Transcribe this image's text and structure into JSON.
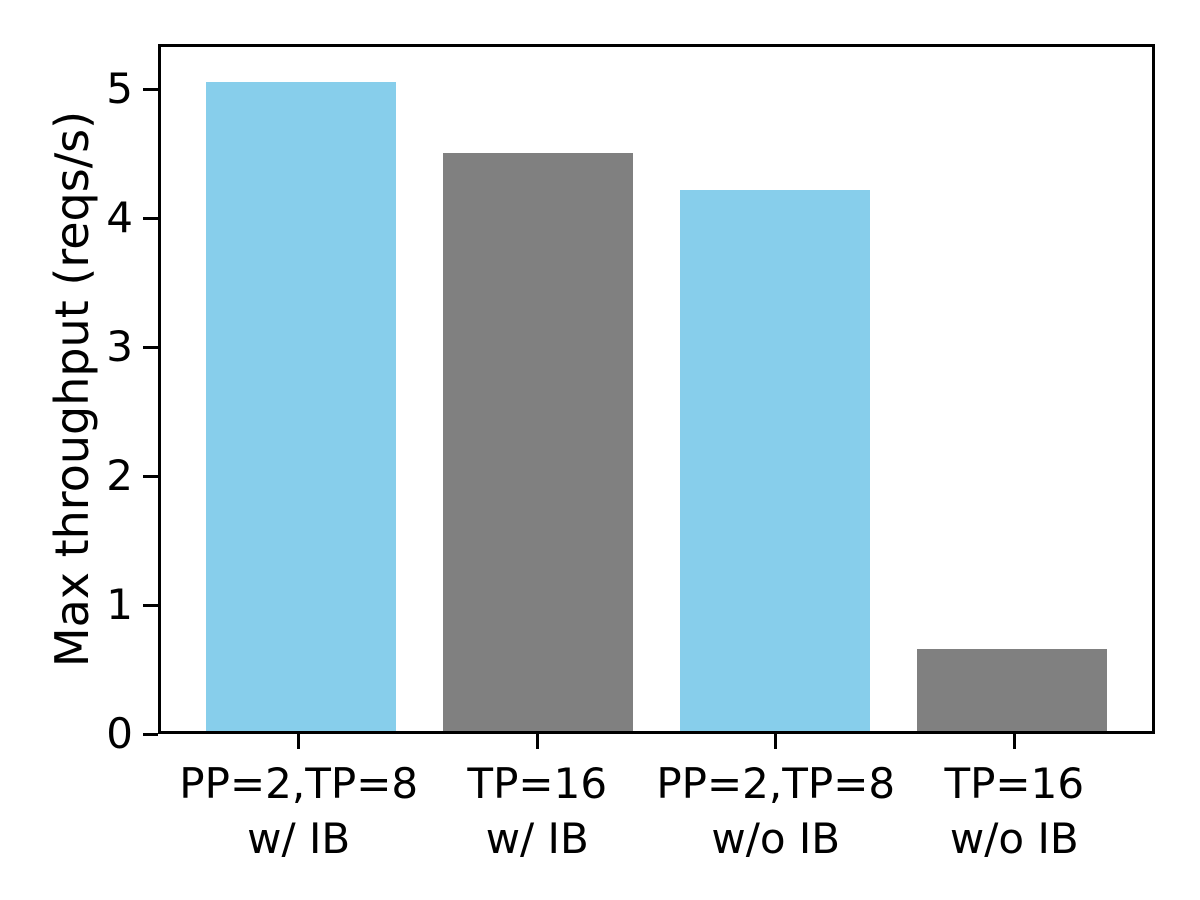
{
  "chart_data": {
    "type": "bar",
    "title": "",
    "xlabel": "",
    "ylabel": "Max throughput (reqs/s)",
    "categories": [
      [
        "PP=2,TP=8",
        "w/ IB"
      ],
      [
        "TP=16",
        "w/ IB"
      ],
      [
        "PP=2,TP=8",
        "w/o IB"
      ],
      [
        "TP=16",
        "w/o IB"
      ]
    ],
    "values": [
      5.08,
      4.52,
      4.23,
      0.64
    ],
    "bar_colors": [
      "#87CEEB",
      "#808080",
      "#87CEEB",
      "#808080"
    ],
    "yticks": [
      0,
      1,
      2,
      3,
      4,
      5
    ],
    "ylim": [
      0,
      5.35
    ],
    "bar_width_fraction": 0.8,
    "x_margin": 0.19,
    "grid": false,
    "legend_position": "none"
  },
  "colors": {
    "bar_blue": "#87CEEB",
    "bar_gray": "#808080",
    "axis": "#000000",
    "background": "#FFFFFF"
  }
}
